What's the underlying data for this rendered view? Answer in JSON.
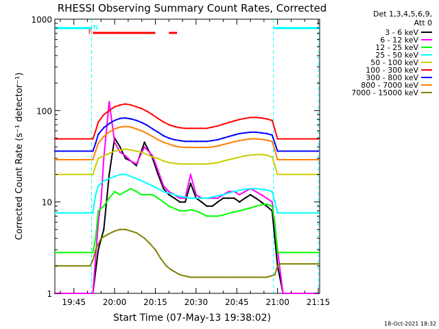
{
  "chart_data": {
    "type": "line",
    "title": "RHESSI Observing Summary Count Rates, Corrected",
    "xlabel": "Start Time (07-May-13 19:38:02)",
    "ylabel": "Corrected Count Rate (s⁻¹ detector⁻¹)",
    "x_unit": "minutes since 19:38:02",
    "xlim": [
      0,
      97.5
    ],
    "ylim": [
      1,
      1000
    ],
    "yscale": "log",
    "x_ticks": [
      {
        "label": "19:45",
        "value": 7
      },
      {
        "label": "20:00",
        "value": 22
      },
      {
        "label": "20:15",
        "value": 37
      },
      {
        "label": "20:30",
        "value": 52
      },
      {
        "label": "20:45",
        "value": 67
      },
      {
        "label": "21:00",
        "value": 82
      },
      {
        "label": "21:15",
        "value": 97
      }
    ],
    "y_ticks": [
      {
        "label": "1000",
        "value": 1000
      },
      {
        "label": "100",
        "value": 100
      },
      {
        "label": "10",
        "value": 10
      },
      {
        "label": "1",
        "value": 1
      }
    ],
    "legend_header": [
      "Det 1,3,4,5,6,9,",
      "Att 0"
    ],
    "series": [
      {
        "name": "3 - 6 keV",
        "color": "#000000",
        "x": [
          0,
          14,
          16,
          18,
          20,
          22,
          24,
          26,
          28,
          30,
          33,
          36,
          38,
          40,
          42,
          44,
          46,
          48,
          50,
          52,
          54,
          56,
          58,
          60,
          62,
          64,
          66,
          68,
          70,
          72,
          74,
          76,
          78,
          80,
          82,
          84,
          97
        ],
        "values": [
          1,
          1,
          3,
          5,
          20,
          50,
          40,
          30,
          28,
          25,
          45,
          30,
          20,
          14,
          12,
          11,
          10,
          10,
          16,
          11,
          10,
          9,
          9,
          10,
          11,
          11,
          11,
          10,
          11,
          12,
          11,
          10,
          9,
          8,
          2,
          1,
          1
        ]
      },
      {
        "name": "6 - 12 keV",
        "color": "#ff00ff",
        "x": [
          0,
          14,
          16,
          17,
          18,
          20,
          22,
          24,
          26,
          28,
          30,
          33,
          36,
          38,
          40,
          42,
          44,
          46,
          48,
          50,
          52,
          54,
          56,
          58,
          60,
          62,
          64,
          66,
          68,
          70,
          72,
          74,
          76,
          78,
          80,
          82,
          84,
          97
        ],
        "values": [
          1,
          1,
          6,
          10,
          30,
          125,
          45,
          35,
          32,
          28,
          26,
          40,
          32,
          22,
          15,
          13,
          12,
          11,
          11,
          20,
          12,
          11,
          11,
          11,
          11,
          12,
          13,
          13,
          12,
          13,
          14,
          13,
          12,
          11,
          10,
          3,
          1,
          1
        ]
      },
      {
        "name": "12 - 25 keV",
        "color": "#00ff00",
        "x": [
          0,
          14,
          15,
          16,
          18,
          20,
          22,
          24,
          26,
          28,
          30,
          32,
          34,
          36,
          38,
          40,
          42,
          44,
          46,
          48,
          50,
          52,
          54,
          56,
          58,
          60,
          62,
          64,
          66,
          68,
          70,
          72,
          74,
          76,
          78,
          80,
          81,
          82,
          97
        ],
        "values": [
          2.8,
          2.8,
          4,
          8,
          9,
          11,
          13,
          12,
          13,
          14,
          13,
          12,
          12,
          12,
          11,
          10,
          9,
          8.5,
          8,
          8,
          8.2,
          8,
          7.5,
          7,
          7,
          7,
          7.2,
          7.5,
          7.8,
          8,
          8.3,
          8.6,
          9,
          9.3,
          9.5,
          9,
          6,
          2.8,
          2.8
        ]
      },
      {
        "name": "25 - 50 keV",
        "color": "#00ffff",
        "x": [
          0,
          14,
          15,
          16,
          18,
          20,
          22,
          24,
          26,
          28,
          30,
          32,
          34,
          36,
          38,
          40,
          42,
          44,
          46,
          48,
          50,
          52,
          54,
          56,
          58,
          60,
          62,
          64,
          66,
          68,
          70,
          72,
          74,
          76,
          78,
          80,
          81,
          82,
          97
        ],
        "values": [
          7.6,
          7.6,
          12,
          15,
          17,
          18,
          19,
          20,
          20,
          19,
          18,
          17,
          16,
          15,
          14,
          13,
          12.5,
          12,
          11.5,
          11.3,
          11,
          11,
          11,
          11,
          11.3,
          11.7,
          12,
          12.5,
          13,
          13.4,
          13.8,
          14,
          14,
          13.8,
          13.5,
          13,
          10,
          7.6,
          7.6
        ]
      },
      {
        "name": "50 - 100 keV",
        "color": "#cccc00",
        "x": [
          0,
          14,
          15,
          16,
          18,
          20,
          22,
          24,
          26,
          28,
          30,
          32,
          34,
          36,
          38,
          40,
          42,
          44,
          46,
          48,
          50,
          52,
          54,
          56,
          58,
          60,
          62,
          64,
          66,
          68,
          70,
          72,
          74,
          76,
          78,
          80,
          81,
          82,
          97
        ],
        "values": [
          20,
          20,
          25,
          30,
          32,
          34,
          36,
          37,
          38,
          37,
          36,
          35,
          33,
          31,
          30,
          28,
          27,
          26.5,
          26,
          26,
          26,
          26,
          26,
          26,
          26.5,
          27,
          28,
          29,
          30,
          31,
          32,
          32.5,
          33,
          33,
          32.5,
          31,
          25,
          20,
          20
        ]
      },
      {
        "name": "100 - 300 keV",
        "color": "#ff0000",
        "x": [
          0,
          14,
          15,
          16,
          18,
          20,
          22,
          24,
          26,
          28,
          30,
          32,
          34,
          36,
          38,
          40,
          42,
          44,
          46,
          48,
          50,
          52,
          54,
          56,
          58,
          60,
          62,
          64,
          66,
          68,
          70,
          72,
          74,
          76,
          78,
          80,
          81,
          82,
          97
        ],
        "values": [
          49,
          49,
          60,
          75,
          90,
          100,
          110,
          115,
          118,
          115,
          110,
          105,
          98,
          90,
          82,
          75,
          70,
          67,
          65,
          64,
          64,
          64,
          64,
          64,
          66,
          68,
          71,
          74,
          77,
          80,
          82,
          84,
          84,
          83,
          81,
          78,
          62,
          49,
          49
        ]
      },
      {
        "name": "300 - 800 keV",
        "color": "#0000ff",
        "x": [
          0,
          14,
          15,
          16,
          18,
          20,
          22,
          24,
          26,
          28,
          30,
          32,
          34,
          36,
          38,
          40,
          42,
          44,
          46,
          48,
          50,
          52,
          54,
          56,
          58,
          60,
          62,
          64,
          66,
          68,
          70,
          72,
          74,
          76,
          78,
          80,
          81,
          82,
          97
        ],
        "values": [
          36,
          36,
          44,
          55,
          65,
          72,
          78,
          82,
          83,
          81,
          78,
          74,
          69,
          63,
          58,
          53,
          50,
          48,
          47,
          46,
          46,
          46,
          46,
          46,
          47,
          48,
          50,
          52,
          54,
          56,
          57,
          58,
          58,
          57,
          56,
          54,
          44,
          36,
          36
        ]
      },
      {
        "name": "800 - 7000 keV",
        "color": "#ff8000",
        "x": [
          0,
          14,
          15,
          16,
          18,
          20,
          22,
          24,
          26,
          28,
          30,
          32,
          34,
          36,
          38,
          40,
          42,
          44,
          46,
          48,
          50,
          52,
          54,
          56,
          58,
          60,
          62,
          64,
          66,
          68,
          70,
          72,
          74,
          76,
          78,
          80,
          81,
          82,
          97
        ],
        "values": [
          29,
          29,
          36,
          44,
          52,
          58,
          63,
          66,
          67,
          66,
          63,
          60,
          56,
          52,
          48,
          45,
          43,
          41,
          40,
          39.5,
          39.5,
          39.5,
          39.5,
          39.5,
          40,
          41,
          42.5,
          44,
          45.5,
          47,
          48,
          49,
          49,
          48.5,
          47.5,
          46,
          37,
          29,
          29
        ]
      },
      {
        "name": "7000 - 15000 keV",
        "color": "#808000",
        "x": [
          0,
          13,
          14,
          15,
          17,
          20,
          22,
          24,
          26,
          28,
          30,
          33,
          35,
          37,
          39,
          41,
          43,
          46,
          50,
          54,
          58,
          62,
          66,
          70,
          74,
          78,
          81,
          82,
          83,
          97
        ],
        "values": [
          2,
          2,
          2.3,
          3,
          4,
          4.5,
          4.8,
          5,
          5,
          4.8,
          4.6,
          4,
          3.5,
          3,
          2.4,
          2,
          1.8,
          1.6,
          1.5,
          1.5,
          1.5,
          1.5,
          1.5,
          1.5,
          1.5,
          1.5,
          1.6,
          2,
          2.1,
          2.1
        ]
      }
    ],
    "flags": {
      "labels": [
        {
          "text": "F",
          "color": "#ff0000",
          "x": 13
        },
        {
          "text": "N",
          "color": "#00ffff",
          "x": 15
        }
      ],
      "night_bars": [
        [
          0,
          13.5
        ],
        [
          80.5,
          97.5
        ]
      ],
      "flare_bars": [
        [
          14,
          37
        ],
        [
          42,
          45
        ]
      ],
      "boundaries": [
        13.5,
        80.5,
        97
      ]
    }
  },
  "footer_timestamp": "18-Oct-2021 18:32"
}
